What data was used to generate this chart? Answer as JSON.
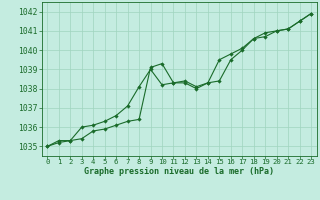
{
  "title": "Graphe pression niveau de la mer (hPa)",
  "background_color": "#c4ece0",
  "grid_color": "#a0d4be",
  "line_color": "#1a6b2a",
  "x_ticks": [
    0,
    1,
    2,
    3,
    4,
    5,
    6,
    7,
    8,
    9,
    10,
    11,
    12,
    13,
    14,
    15,
    16,
    17,
    18,
    19,
    20,
    21,
    22,
    23
  ],
  "ylim": [
    1034.5,
    1042.5
  ],
  "yticks": [
    1035,
    1036,
    1037,
    1038,
    1039,
    1040,
    1041,
    1042
  ],
  "series1_x": [
    0,
    1,
    2,
    3,
    4,
    5,
    6,
    7,
    8,
    9,
    10,
    11,
    12,
    13,
    14,
    15,
    16,
    17,
    18,
    19,
    20,
    21,
    22,
    23
  ],
  "series1_y": [
    1035.0,
    1035.3,
    1035.3,
    1035.4,
    1035.8,
    1035.9,
    1036.1,
    1036.3,
    1036.4,
    1039.1,
    1039.3,
    1038.3,
    1038.4,
    1038.1,
    1038.3,
    1038.4,
    1039.5,
    1040.0,
    1040.6,
    1040.7,
    1041.0,
    1041.1,
    1041.5,
    1041.9
  ],
  "series2_x": [
    0,
    1,
    2,
    3,
    4,
    5,
    6,
    7,
    8,
    9,
    10,
    11,
    12,
    13,
    14,
    15,
    16,
    17,
    18,
    19,
    20,
    21,
    22,
    23
  ],
  "series2_y": [
    1035.0,
    1035.2,
    1035.3,
    1036.0,
    1036.1,
    1036.3,
    1036.6,
    1037.1,
    1038.1,
    1039.0,
    1038.2,
    1038.3,
    1038.3,
    1038.0,
    1038.3,
    1039.5,
    1039.8,
    1040.1,
    1040.6,
    1040.9,
    1041.0,
    1041.1,
    1041.5,
    1041.9
  ],
  "xlim": [
    -0.5,
    23.5
  ],
  "title_fontsize": 6.0,
  "tick_fontsize": 5.2,
  "ytick_fontsize": 5.8
}
